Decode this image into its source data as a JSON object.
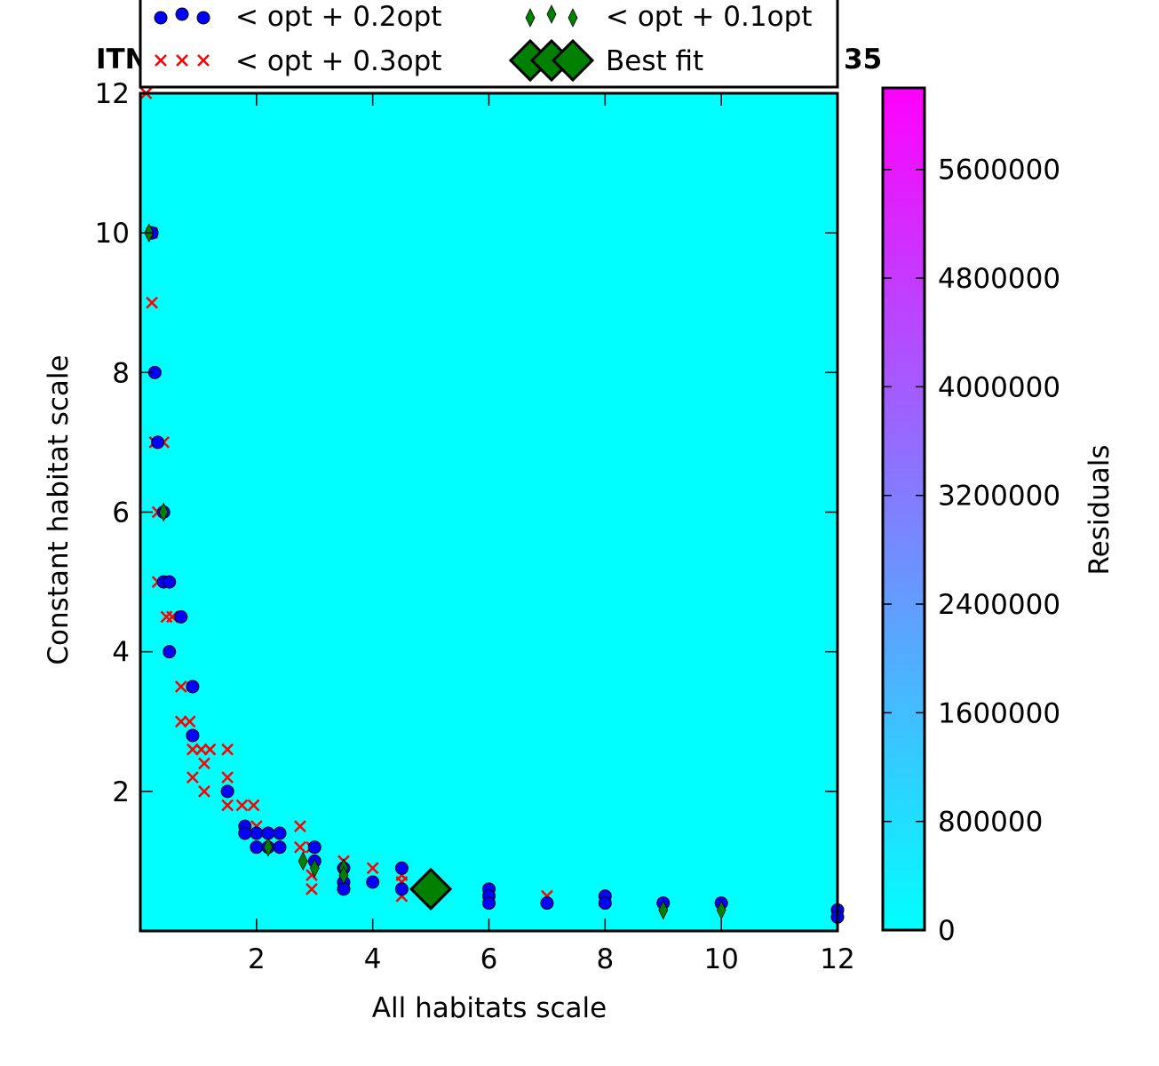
{
  "chart_data": {
    "type": "scatter",
    "title_left": "ITN",
    "title_right": "35",
    "xlabel": "All habitats scale",
    "ylabel": "Constant habitat scale",
    "xlim": [
      0.0,
      12.0
    ],
    "ylim": [
      0.0,
      12.0
    ],
    "x_ticks": [
      2,
      4,
      6,
      8,
      10,
      12
    ],
    "y_ticks": [
      2,
      4,
      6,
      8,
      10,
      12
    ],
    "background_color": "#00ffff",
    "grid": false,
    "legend": {
      "placement": "top",
      "entries": [
        {
          "label": "< opt + 0.2opt",
          "marker": "circle",
          "color": "#0000ff"
        },
        {
          "label": "< opt + 0.1opt",
          "marker": "thin-diamond",
          "color": "#007f00"
        },
        {
          "label": "< opt + 0.3opt",
          "marker": "x",
          "color": "#ff0000"
        },
        {
          "label": "Best fit",
          "marker": "diamond",
          "color": "#007f00"
        }
      ]
    },
    "colorbar": {
      "label": "Residuals",
      "range": [
        0,
        6200000
      ],
      "ticks": [
        0,
        800000,
        1600000,
        2400000,
        3200000,
        4000000,
        4800000,
        5600000
      ],
      "tick_labels": [
        "0",
        "800000",
        "1600000",
        "2400000",
        "3200000",
        "4000000",
        "4800000",
        "5600000"
      ],
      "color_min": "#00ffff",
      "color_max": "#ff00ff"
    },
    "series": [
      {
        "name": "< opt + 0.3opt",
        "marker": "x",
        "color": "#ff0000",
        "points": [
          [
            0.1,
            12
          ],
          [
            0.2,
            10
          ],
          [
            0.2,
            9
          ],
          [
            0.25,
            7
          ],
          [
            0.4,
            7
          ],
          [
            0.3,
            6
          ],
          [
            0.3,
            5
          ],
          [
            0.45,
            4.5
          ],
          [
            0.55,
            4.5
          ],
          [
            0.7,
            3.5
          ],
          [
            0.7,
            3
          ],
          [
            0.85,
            3
          ],
          [
            0.9,
            2.6
          ],
          [
            1.05,
            2.6
          ],
          [
            1.2,
            2.6
          ],
          [
            1.5,
            2.6
          ],
          [
            1.1,
            2.4
          ],
          [
            0.9,
            2.2
          ],
          [
            1.5,
            2.2
          ],
          [
            1.1,
            2.0
          ],
          [
            1.5,
            1.8
          ],
          [
            1.75,
            1.8
          ],
          [
            1.95,
            1.8
          ],
          [
            2.0,
            1.5
          ],
          [
            2.75,
            1.5
          ],
          [
            2.75,
            1.2
          ],
          [
            2.95,
            1.2
          ],
          [
            2.95,
            0.8
          ],
          [
            2.95,
            0.6
          ],
          [
            3.5,
            1.0
          ],
          [
            4.0,
            0.9
          ],
          [
            4.5,
            0.8
          ],
          [
            4.5,
            0.7
          ],
          [
            4.5,
            0.5
          ],
          [
            7.0,
            0.5
          ]
        ]
      },
      {
        "name": "< opt + 0.2opt",
        "marker": "circle",
        "color": "#0000ff",
        "points": [
          [
            0.2,
            10
          ],
          [
            0.25,
            8
          ],
          [
            0.3,
            7
          ],
          [
            0.4,
            6
          ],
          [
            0.4,
            5
          ],
          [
            0.5,
            5
          ],
          [
            0.7,
            4.5
          ],
          [
            0.5,
            4
          ],
          [
            0.9,
            3.5
          ],
          [
            0.9,
            2.8
          ],
          [
            1.5,
            2.0
          ],
          [
            1.8,
            1.5
          ],
          [
            1.8,
            1.4
          ],
          [
            2.0,
            1.4
          ],
          [
            2.2,
            1.4
          ],
          [
            2.4,
            1.4
          ],
          [
            2.0,
            1.2
          ],
          [
            2.2,
            1.2
          ],
          [
            2.4,
            1.2
          ],
          [
            3.0,
            1.2
          ],
          [
            3.0,
            1.0
          ],
          [
            3.5,
            0.9
          ],
          [
            3.5,
            0.7
          ],
          [
            3.5,
            0.6
          ],
          [
            4.0,
            0.7
          ],
          [
            4.5,
            0.9
          ],
          [
            4.5,
            0.6
          ],
          [
            6.0,
            0.6
          ],
          [
            6.0,
            0.5
          ],
          [
            6.0,
            0.4
          ],
          [
            7.0,
            0.4
          ],
          [
            8.0,
            0.5
          ],
          [
            8.0,
            0.4
          ],
          [
            9.0,
            0.4
          ],
          [
            10.0,
            0.4
          ],
          [
            12.0,
            0.3
          ],
          [
            12.0,
            0.2
          ]
        ]
      },
      {
        "name": "< opt + 0.1opt",
        "marker": "thin-diamond",
        "color": "#007f00",
        "points": [
          [
            0.15,
            10
          ],
          [
            0.4,
            6
          ],
          [
            2.2,
            1.2
          ],
          [
            2.8,
            1.0
          ],
          [
            3.0,
            0.9
          ],
          [
            3.5,
            0.9
          ],
          [
            3.5,
            0.8
          ],
          [
            9.0,
            0.3
          ],
          [
            10.0,
            0.3
          ]
        ]
      },
      {
        "name": "Best fit",
        "marker": "diamond",
        "color": "#007f00",
        "points": [
          [
            5.0,
            0.6
          ]
        ]
      }
    ]
  }
}
